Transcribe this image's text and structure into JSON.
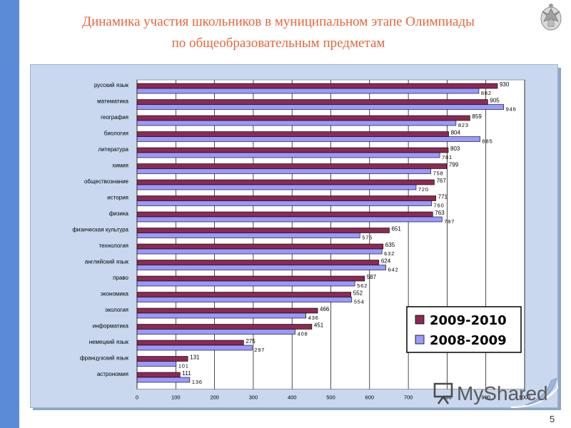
{
  "slide": {
    "title_line1": "Динамика участия школьников в муниципальном этапе Олимпиады",
    "title_line2": "по общеобразовательным предметам",
    "page_number": "5",
    "watermark": "MyShared",
    "colors": {
      "title": "#e8663c",
      "left_bar": "#5b8bd6",
      "panel": "#c9d8ef"
    }
  },
  "chart_data": {
    "type": "bar",
    "orientation": "horizontal",
    "categories": [
      "русский язык",
      "математика",
      "география",
      "биология",
      "литература",
      "химия",
      "обществознание",
      "история",
      "физика",
      "физическая культура",
      "технология",
      "английский язык",
      "право",
      "экономика",
      "экология",
      "информатика",
      "немецкий язык",
      "французский язык",
      "астрономия"
    ],
    "series": [
      {
        "name": "2009-2010",
        "color": "#8b2a52",
        "values": [
          930,
          905,
          859,
          804,
          803,
          799,
          767,
          771,
          763,
          651,
          635,
          624,
          587,
          552,
          466,
          451,
          275,
          131,
          111
        ]
      },
      {
        "name": "2008-2009",
        "color": "#9999ff",
        "values": [
          882,
          946,
          823,
          885,
          781,
          758,
          720,
          760,
          787,
          575,
          632,
          642,
          562,
          554,
          436,
          408,
          297,
          101,
          136
        ]
      }
    ],
    "xlim": [
      0,
      1000
    ],
    "xticks": [
      "0",
      "100",
      "200",
      "300",
      "400",
      "500",
      "600",
      "700",
      "800",
      "900",
      "1000"
    ],
    "grid": "vertical",
    "legend_position": "bottom-right"
  }
}
